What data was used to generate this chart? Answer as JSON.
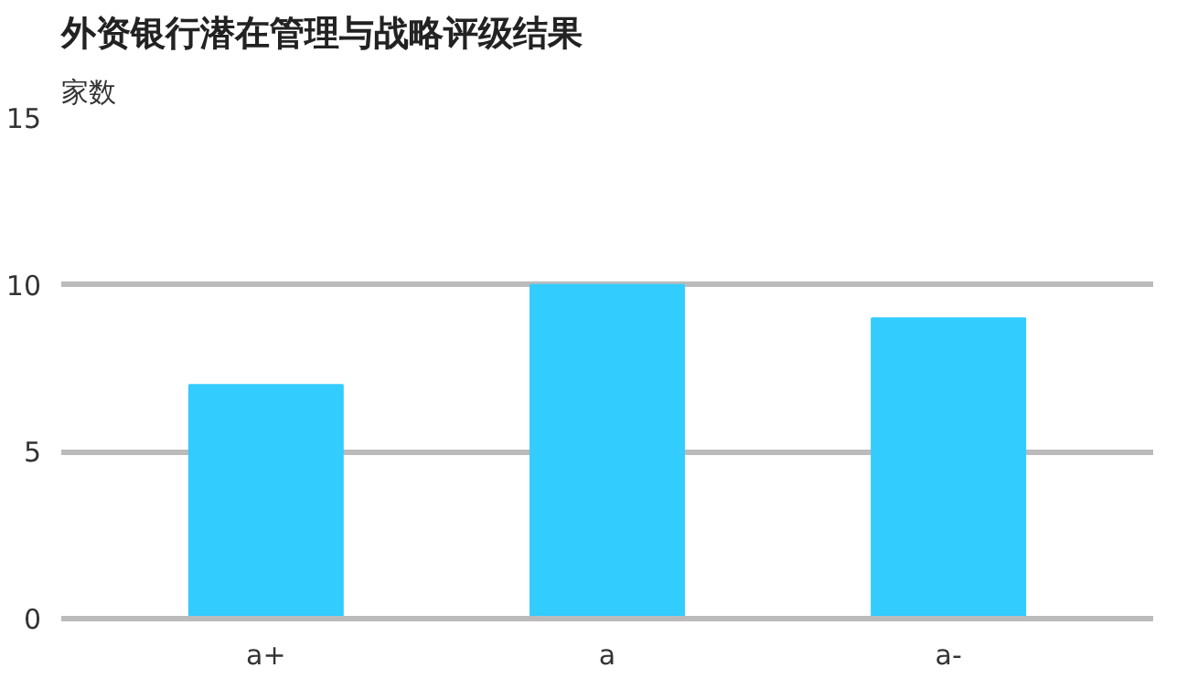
{
  "chart_data": {
    "type": "bar",
    "title": "外资银行潜在管理与战略评级结果",
    "ylabel": "家数",
    "categories": [
      "a+",
      "a",
      "a-"
    ],
    "values": [
      7,
      10,
      9
    ],
    "color": "#33ccff",
    "ylim": [
      0,
      15
    ],
    "yticks": [
      0,
      5,
      10,
      15
    ],
    "grid": "y"
  }
}
